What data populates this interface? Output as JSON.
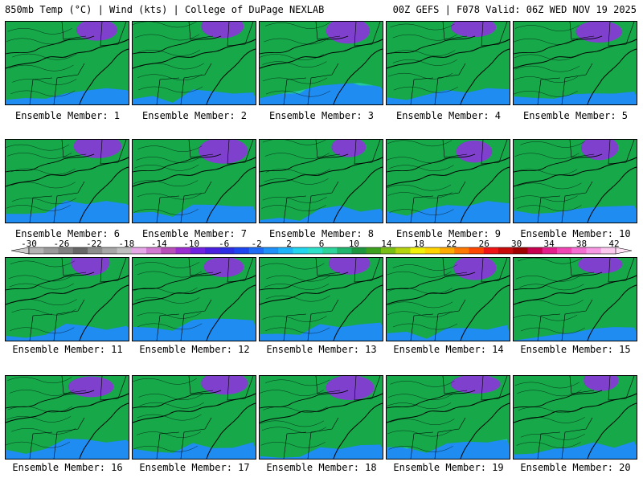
{
  "header": {
    "left": "850mb Temp (°C) | Wind (kts) | College of DuPage NEXLAB",
    "right": "00Z GEFS | F078 Valid: 06Z WED NOV 19 2025"
  },
  "panels": [
    {
      "label": "Ensemble Member: 1"
    },
    {
      "label": "Ensemble Member: 2"
    },
    {
      "label": "Ensemble Member: 3"
    },
    {
      "label": "Ensemble Member: 4"
    },
    {
      "label": "Ensemble Member: 5"
    },
    {
      "label": "Ensemble Member: 6"
    },
    {
      "label": "Ensemble Member: 7"
    },
    {
      "label": "Ensemble Member: 8"
    },
    {
      "label": "Ensemble Member: 9"
    },
    {
      "label": "Ensemble Member: 10"
    },
    {
      "label": "Ensemble Member: 11"
    },
    {
      "label": "Ensemble Member: 12"
    },
    {
      "label": "Ensemble Member: 13"
    },
    {
      "label": "Ensemble Member: 14"
    },
    {
      "label": "Ensemble Member: 15"
    },
    {
      "label": "Ensemble Member: 16"
    },
    {
      "label": "Ensemble Member: 17"
    },
    {
      "label": "Ensemble Member: 18"
    },
    {
      "label": "Ensemble Member: 19"
    },
    {
      "label": "Ensemble Member: 20"
    }
  ],
  "colorbar": {
    "ticks": [
      "-30",
      "-26",
      "-22",
      "-18",
      "-14",
      "-10",
      "-6",
      "-2",
      "2",
      "6",
      "10",
      "14",
      "18",
      "22",
      "26",
      "30",
      "34",
      "38",
      "42"
    ],
    "colors": [
      "#b3b3b3",
      "#999999",
      "#808080",
      "#666666",
      "#8c8c8c",
      "#a6a6a6",
      "#bfbfbf",
      "#e6a8e6",
      "#d27ad2",
      "#b84eb8",
      "#9a2ed0",
      "#6f22e0",
      "#4b1ee0",
      "#2d2de6",
      "#1e46f0",
      "#1e6cf5",
      "#1e90f8",
      "#1eb4fa",
      "#22d6f0",
      "#2ee0c8",
      "#2cd49a",
      "#20b46c",
      "#1e9640",
      "#3ca01e",
      "#78be14",
      "#b4d20e",
      "#f0f00a",
      "#ffd200",
      "#ffaa00",
      "#ff7800",
      "#ff4600",
      "#f01414",
      "#c80a0a",
      "#a00000",
      "#c80050",
      "#e61e8c",
      "#f046b4",
      "#f46ed2",
      "#f898e4",
      "#fcc8f0"
    ]
  }
}
